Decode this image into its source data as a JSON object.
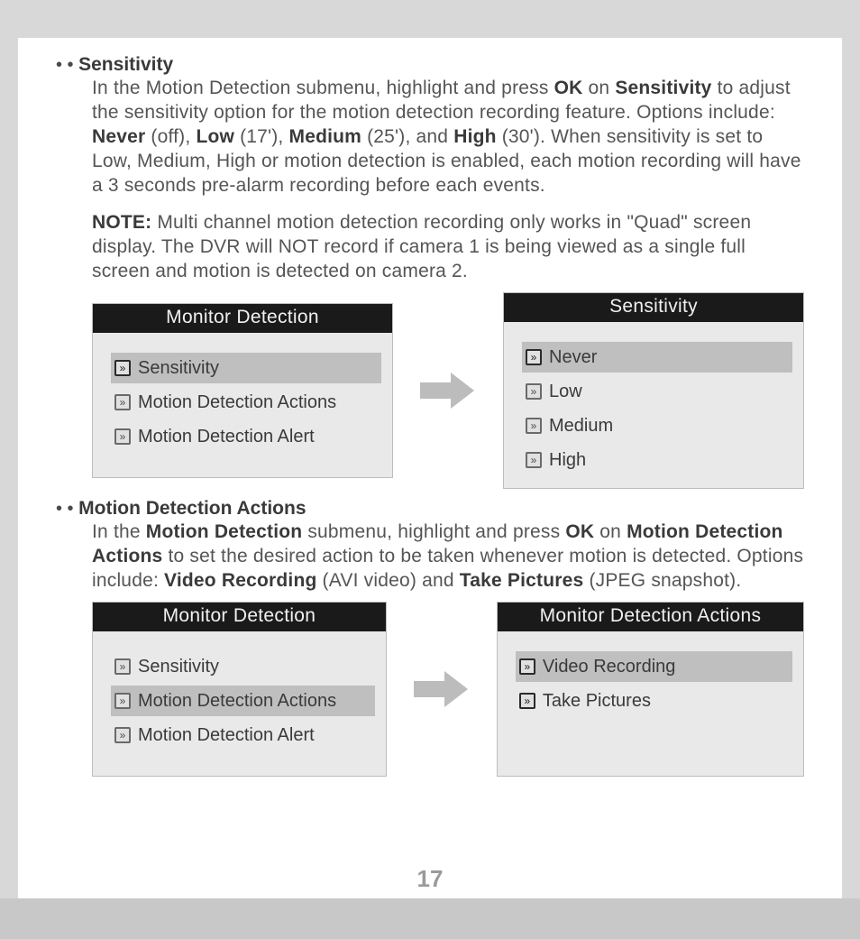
{
  "page_number": "17",
  "section1": {
    "bullets": "•  •  ",
    "title": "Sensitivity",
    "para_pre": "In the Motion Detection submenu, highlight and press ",
    "ok": "OK",
    "para_mid1": " on ",
    "b_sensitivity": "Sensitivity",
    "para_mid2": " to adjust the sensitivity option for the motion detection recording feature. Options include: ",
    "b_never": "Never",
    "p_never": " (off), ",
    "b_low": "Low",
    "p_low": " (17'), ",
    "b_medium": "Medium",
    "p_medium": " (25'), and ",
    "b_high": "High",
    "p_high": " (30'). When sensitivity is set to Low, Medium, High or motion detection is enabled, each motion recording will have a 3 seconds pre-alarm recording before each events.",
    "note_label": "NOTE:",
    "note_text": " Multi channel motion detection recording only works in \"Quad\" screen display. The DVR will NOT record if camera 1 is being viewed as a single full screen and motion is detected on camera 2."
  },
  "menu1_left": {
    "title": "Monitor Detection",
    "items": [
      {
        "label": "Sensitivity",
        "selected": true
      },
      {
        "label": "Motion Detection Actions",
        "selected": false
      },
      {
        "label": "Motion Detection Alert",
        "selected": false
      }
    ]
  },
  "menu1_right": {
    "title": "Sensitivity",
    "items": [
      {
        "label": "Never",
        "selected": true
      },
      {
        "label": "Low",
        "selected": false
      },
      {
        "label": "Medium",
        "selected": false
      },
      {
        "label": "High",
        "selected": false
      }
    ]
  },
  "section2": {
    "bullets": "•  •  ",
    "title": "Motion Detection Actions",
    "p_pre": "In the ",
    "b_md": "Motion Detection",
    "p_mid1": " submenu, highlight and press ",
    "ok": "OK",
    "p_mid2": " on ",
    "b_mda": "Motion Detection Actions",
    "p_mid3": " to set the desired action to be taken whenever motion is detected. Options include: ",
    "b_vr": "Video Recording",
    "p_vr": " (AVI video) and ",
    "b_tp": "Take Pictures",
    "p_tp": " (JPEG snapshot)."
  },
  "menu2_left": {
    "title": "Monitor Detection",
    "items": [
      {
        "label": "Sensitivity",
        "selected": false
      },
      {
        "label": "Motion Detection Actions",
        "selected": true
      },
      {
        "label": "Motion Detection Alert",
        "selected": false
      }
    ]
  },
  "menu2_right": {
    "title": "Monitor Detection  Actions",
    "items": [
      {
        "label": "Video Recording",
        "selected": true
      },
      {
        "label": "Take Pictures",
        "selected": false
      }
    ]
  }
}
